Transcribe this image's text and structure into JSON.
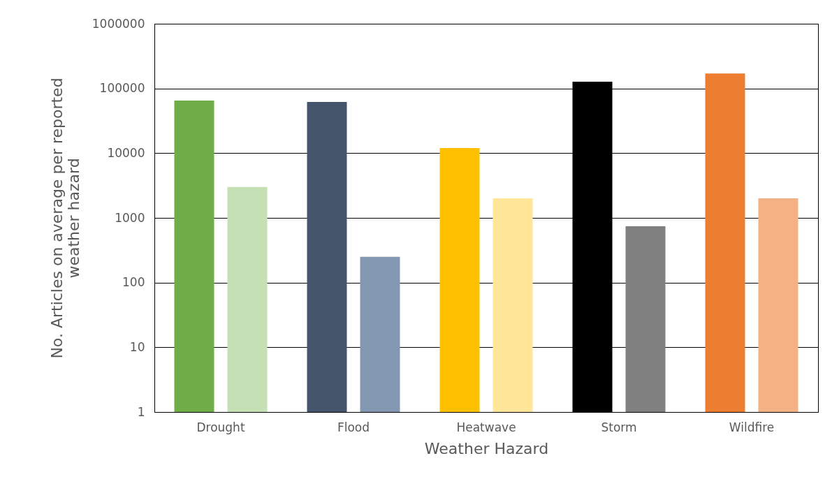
{
  "chart_data": {
    "type": "bar",
    "xlabel": "Weather Hazard",
    "ylabel": "No. Articles on average per reported weather hazard",
    "categories": [
      "Drought",
      "Flood",
      "Heatwave",
      "Storm",
      "Wildfire"
    ],
    "series": [
      {
        "colors": [
          "#70ad47",
          "#44546a",
          "#ffc000",
          "#000000",
          "#ed7d31"
        ],
        "values": [
          65000,
          62000,
          12000,
          127000,
          170000
        ]
      },
      {
        "colors": [
          "#c5e0b4",
          "#8497b0",
          "#ffe699",
          "#808080",
          "#f4b183"
        ],
        "values": [
          3000,
          250,
          2000,
          740,
          2000
        ]
      }
    ],
    "log": "y",
    "ylim": [
      1,
      1000000
    ],
    "yticks": [
      1,
      10,
      100,
      1000,
      10000,
      100000,
      1000000
    ],
    "grid": "y"
  }
}
